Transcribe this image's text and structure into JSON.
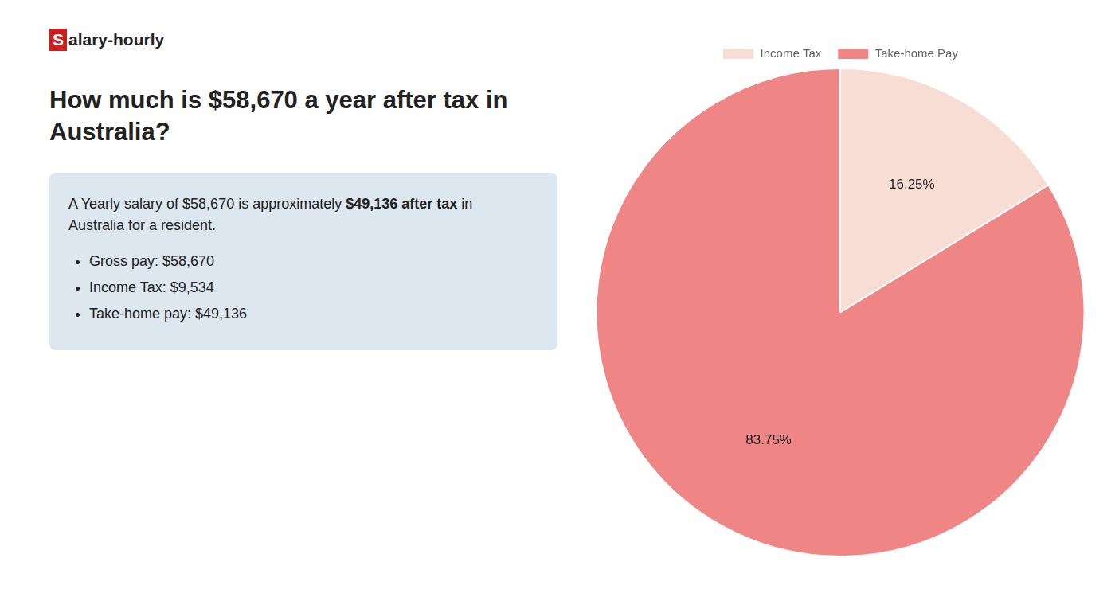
{
  "chart_data": {
    "type": "pie",
    "title": "How much is $58,670 a year after tax in Australia?",
    "annotations": [
      "S",
      "alary-hourly",
      "A Yearly salary of $58,670 is approximately ",
      "$49,136 after tax",
      " in",
      "Australia for a resident.",
      "Gross pay: $58,670",
      "Income Tax: $9,534",
      "Take-home pay: $49,136"
    ],
    "categories": [
      "Income Tax",
      "Take-home Pay"
    ],
    "values": [
      16.25,
      83.75
    ],
    "value_labels": [
      "16.25%",
      "83.75%"
    ],
    "colors": [
      "#f7ddd4",
      "#f08585"
    ],
    "data_labels": true,
    "legend": "top"
  }
}
